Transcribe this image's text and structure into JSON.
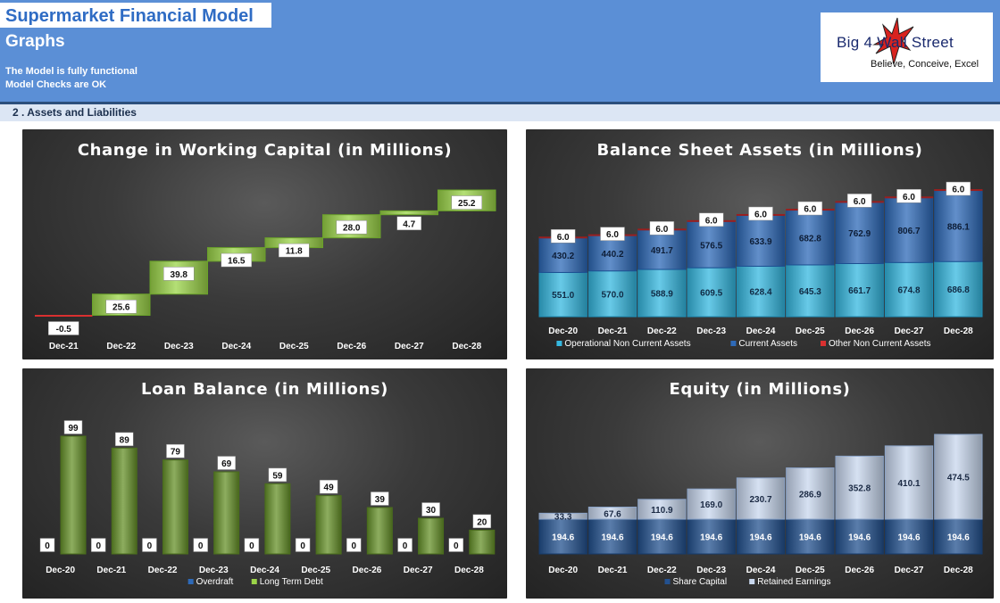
{
  "header": {
    "title": "Supermarket Financial Model",
    "subtitle": "Graphs",
    "status_line1": "The Model is fully functional",
    "status_line2": "Model Checks are OK"
  },
  "logo": {
    "name": "Big 4  Wall Street",
    "tagline": "Believe, Conceive, Excel"
  },
  "section": {
    "label": "2 .  Assets and Liabilities"
  },
  "colors": {
    "green": "#9bd448",
    "red": "#d93030",
    "olive": "#67922a",
    "cyan": "#35b8e0",
    "blue": "#2e6ab8",
    "darkblue": "#23518f",
    "lightblue": "#c8d7ee"
  },
  "chart_data": [
    {
      "id": "working-capital",
      "type": "waterfall",
      "title": "Change in Working Capital (in Millions)",
      "categories": [
        "Dec-21",
        "Dec-22",
        "Dec-23",
        "Dec-24",
        "Dec-25",
        "Dec-26",
        "Dec-27",
        "Dec-28"
      ],
      "values": [
        -0.5,
        25.6,
        39.8,
        16.5,
        11.8,
        28.0,
        4.7,
        25.2
      ],
      "labels": [
        "-0.5",
        "25.6",
        "39.8",
        "16.5",
        "11.8",
        "28.0",
        "4.7",
        "25.2"
      ]
    },
    {
      "id": "balance-sheet-assets",
      "type": "stacked-bar",
      "title": "Balance Sheet Assets (in Millions)",
      "categories": [
        "Dec-20",
        "Dec-21",
        "Dec-22",
        "Dec-23",
        "Dec-24",
        "Dec-25",
        "Dec-26",
        "Dec-27",
        "Dec-28"
      ],
      "series": [
        {
          "name": "Operational Non Current Assets",
          "values": [
            551.0,
            570.0,
            588.9,
            609.5,
            628.4,
            645.3,
            661.7,
            674.8,
            686.8
          ]
        },
        {
          "name": "Current Assets",
          "values": [
            430.2,
            440.2,
            491.7,
            576.5,
            633.9,
            682.8,
            762.9,
            806.7,
            886.1
          ]
        },
        {
          "name": "Other Non Current Assets",
          "values": [
            6.0,
            6.0,
            6.0,
            6.0,
            6.0,
            6.0,
            6.0,
            6.0,
            6.0
          ]
        }
      ]
    },
    {
      "id": "loan-balance",
      "type": "bar",
      "title": "Loan Balance (in Millions)",
      "categories": [
        "Dec-20",
        "Dec-21",
        "Dec-22",
        "Dec-23",
        "Dec-24",
        "Dec-25",
        "Dec-26",
        "Dec-27",
        "Dec-28"
      ],
      "series": [
        {
          "name": "Overdraft",
          "values": [
            0,
            0,
            0,
            0,
            0,
            0,
            0,
            0,
            0
          ]
        },
        {
          "name": "Long Term Debt",
          "values": [
            99,
            89,
            79,
            69,
            59,
            49,
            39,
            30,
            20
          ]
        }
      ]
    },
    {
      "id": "equity",
      "type": "stacked-bar",
      "title": "Equity (in Millions)",
      "categories": [
        "Dec-20",
        "Dec-21",
        "Dec-22",
        "Dec-23",
        "Dec-24",
        "Dec-25",
        "Dec-26",
        "Dec-27",
        "Dec-28"
      ],
      "series": [
        {
          "name": "Share Capital",
          "values": [
            194.6,
            194.6,
            194.6,
            194.6,
            194.6,
            194.6,
            194.6,
            194.6,
            194.6
          ]
        },
        {
          "name": "Retained Earnings",
          "values": [
            33.3,
            67.6,
            110.9,
            169.0,
            230.7,
            286.9,
            352.8,
            410.1,
            474.5
          ]
        }
      ]
    }
  ]
}
